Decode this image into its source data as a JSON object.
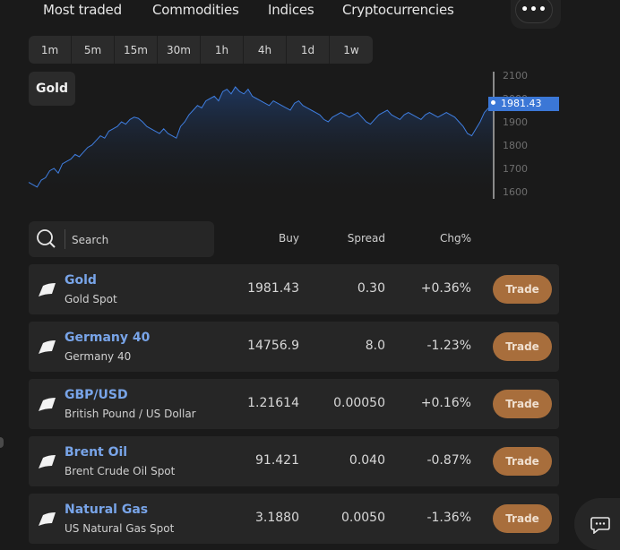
{
  "tabs": [
    "Most traded",
    "Commodities",
    "Indices",
    "Cryptocurrencies"
  ],
  "more_label": "•••",
  "timeframes": [
    "1m",
    "5m",
    "15m",
    "30m",
    "1h",
    "4h",
    "1d",
    "1w"
  ],
  "chart": {
    "instrument": "Gold",
    "current_price": "1981.43",
    "y_ticks": [
      "2100",
      "2000",
      "1900",
      "1800",
      "1700",
      "1600"
    ],
    "accent_color": "#3b77d6"
  },
  "chart_data": {
    "type": "area",
    "ylim": [
      1600,
      2100
    ],
    "values": [
      1640,
      1630,
      1620,
      1650,
      1660,
      1690,
      1700,
      1680,
      1720,
      1730,
      1740,
      1760,
      1750,
      1770,
      1790,
      1800,
      1820,
      1840,
      1830,
      1860,
      1870,
      1880,
      1900,
      1890,
      1910,
      1920,
      1915,
      1900,
      1880,
      1870,
      1860,
      1850,
      1870,
      1850,
      1840,
      1830,
      1880,
      1900,
      1930,
      1950,
      1970,
      1960,
      1990,
      2000,
      2010,
      1990,
      2030,
      2040,
      2020,
      2050,
      2030,
      2020,
      2040,
      2010,
      2000,
      1990,
      1980,
      1970,
      1990,
      1980,
      1970,
      1960,
      1950,
      1980,
      1990,
      1970,
      1960,
      1950,
      1940,
      1930,
      1910,
      1900,
      1920,
      1930,
      1940,
      1930,
      1920,
      1930,
      1940,
      1920,
      1900,
      1890,
      1910,
      1930,
      1940,
      1950,
      1930,
      1920,
      1910,
      1930,
      1940,
      1930,
      1920,
      1910,
      1930,
      1940,
      1930,
      1920,
      1930,
      1940,
      1930,
      1920,
      1900,
      1880,
      1850,
      1840,
      1870,
      1900,
      1940,
      1960,
      1981.43
    ]
  },
  "search": {
    "placeholder": "Search"
  },
  "columns": {
    "buy": "Buy",
    "spread": "Spread",
    "chg": "Chg%"
  },
  "instruments": [
    {
      "name": "Gold",
      "sub": "Gold Spot",
      "buy": "1981.43",
      "spread": "0.30",
      "chg": "+0.36%",
      "trade": "Trade"
    },
    {
      "name": "Germany 40",
      "sub": "Germany 40",
      "buy": "14756.9",
      "spread": "8.0",
      "chg": "-1.23%",
      "trade": "Trade"
    },
    {
      "name": "GBP/USD",
      "sub": "British Pound / US Dollar",
      "buy": "1.21614",
      "spread": "0.00050",
      "chg": "+0.16%",
      "trade": "Trade"
    },
    {
      "name": "Brent Oil",
      "sub": "Brent Crude Oil Spot",
      "buy": "91.421",
      "spread": "0.040",
      "chg": "-0.87%",
      "trade": "Trade"
    },
    {
      "name": "Natural Gas",
      "sub": "US Natural Gas Spot",
      "buy": "3.1880",
      "spread": "0.0050",
      "chg": "-1.36%",
      "trade": "Trade"
    }
  ],
  "colors": {
    "link": "#78a4e8",
    "trade_button": "#a86e3c",
    "background": "#1a1a1a"
  }
}
